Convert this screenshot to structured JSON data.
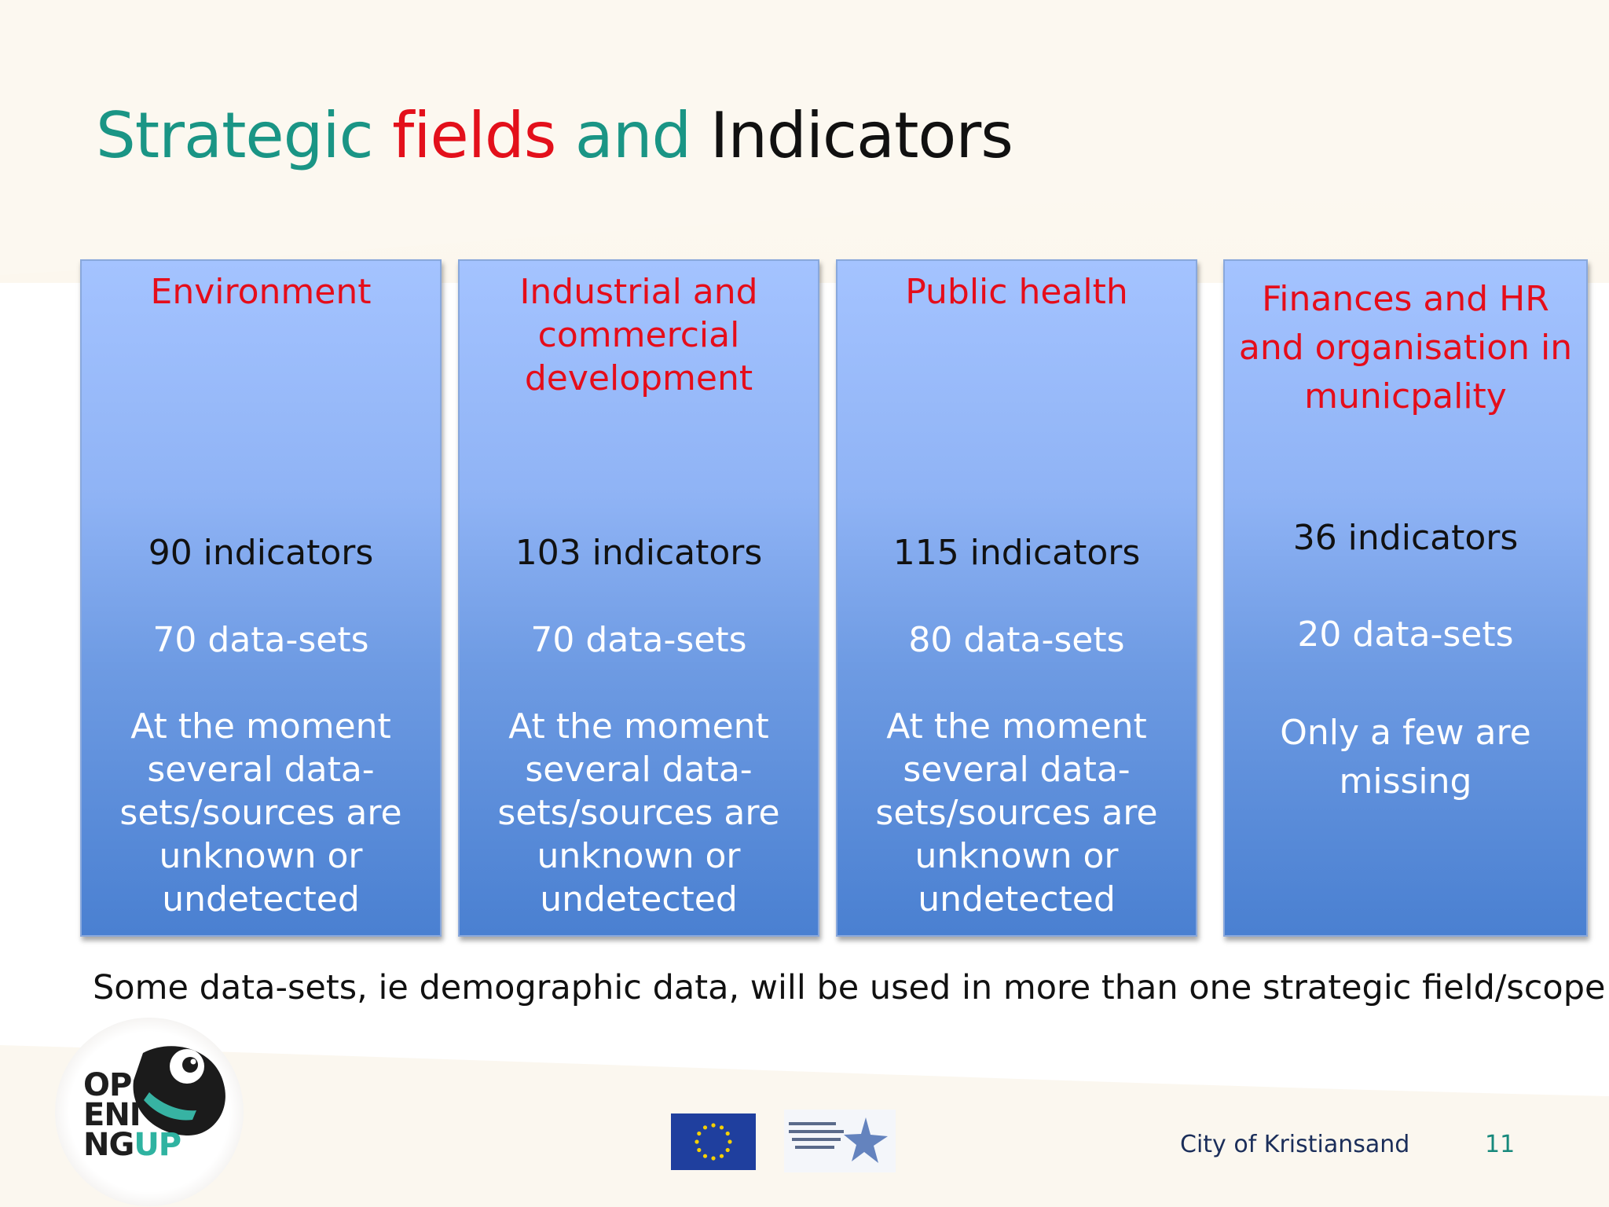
{
  "title": {
    "part1": "Strategic ",
    "part2": "fields",
    "part3": " and ",
    "part4": "Indicators"
  },
  "fields": [
    {
      "header": [
        "Environment"
      ],
      "indicators": "90 indicators",
      "datasets": "70 data-sets",
      "note": [
        "At the moment",
        "several data-",
        "sets/sources are",
        "unknown or",
        "undetected"
      ]
    },
    {
      "header": [
        "Industrial and",
        "commercial",
        "development"
      ],
      "indicators": "103 indicators",
      "datasets": "70 data-sets",
      "note": [
        "At the moment",
        "several data-",
        "sets/sources are",
        "unknown or",
        "undetected"
      ]
    },
    {
      "header": [
        "Public health"
      ],
      "indicators": "115 indicators",
      "datasets": "80 data-sets",
      "note": [
        "At the moment",
        "several data-",
        "sets/sources are",
        "unknown or",
        "undetected"
      ]
    },
    {
      "header": [
        "Finances and HR",
        "and organisation in",
        "municpality"
      ],
      "indicators": "36 indicators",
      "datasets": "20 data-sets",
      "note": [
        "Only a few are",
        "missing"
      ]
    }
  ],
  "footnote": "Some data-sets, ie demographic data, will be used in more than one strategic field/scope.",
  "logo": {
    "line1": "OP",
    "line2": "ENI",
    "line3a": "NG",
    "line3b": "UP"
  },
  "footer": {
    "organisation": "City of Kristiansand",
    "page_number": "11"
  },
  "colors": {
    "title_teal": "#1a9585",
    "title_red": "#e3101b",
    "header_red": "#e50d1a",
    "box_top": "#a4c3ff",
    "box_bottom": "#4a80d1"
  }
}
